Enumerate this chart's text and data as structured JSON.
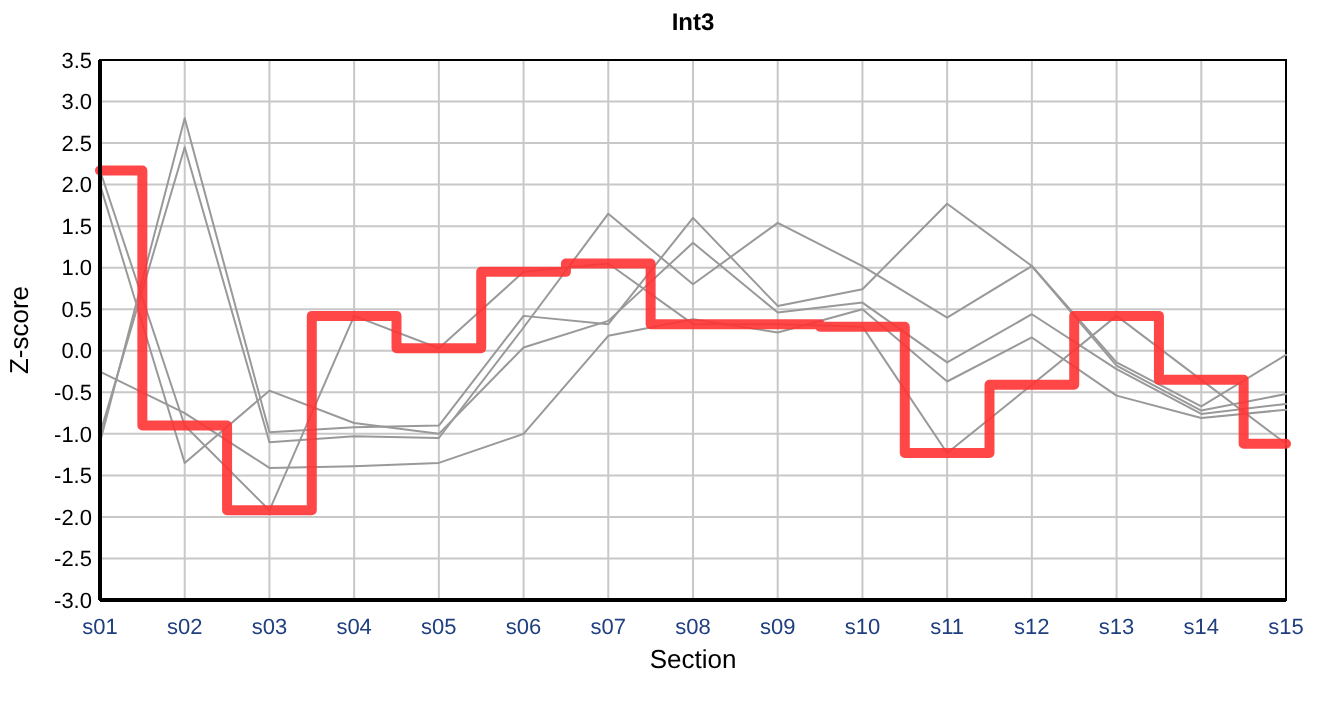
{
  "chart_data": {
    "type": "line",
    "title": "Int3",
    "xlabel": "Section",
    "ylabel": "Z-score",
    "categories": [
      "s01",
      "s02",
      "s03",
      "s04",
      "s05",
      "s06",
      "s07",
      "s08",
      "s09",
      "s10",
      "s11",
      "s12",
      "s13",
      "s14",
      "s15"
    ],
    "series": [
      {
        "color": "#999999",
        "values": [
          -1.1,
          2.8,
          -0.98,
          -0.92,
          -0.9,
          0.42,
          0.32,
          1.6,
          0.54,
          0.74,
          1.77,
          1.02,
          -0.14,
          -0.67,
          -0.05
        ]
      },
      {
        "color": "#999999",
        "values": [
          -1.0,
          2.45,
          -1.1,
          -1.03,
          -1.05,
          0.28,
          1.65,
          0.8,
          1.54,
          1.02,
          0.4,
          1.02,
          -0.18,
          -0.72,
          -0.52
        ]
      },
      {
        "color": "#999999",
        "values": [
          2.0,
          -1.35,
          -0.48,
          -0.87,
          -1.0,
          0.04,
          0.36,
          1.3,
          0.46,
          0.58,
          -0.14,
          0.44,
          -0.22,
          -0.76,
          -0.64
        ]
      },
      {
        "color": "#999999",
        "values": [
          -0.25,
          -0.75,
          -1.41,
          -1.39,
          -1.35,
          -1.0,
          0.18,
          0.38,
          0.22,
          0.5,
          -0.37,
          0.16,
          -0.54,
          -0.81,
          -0.71
        ]
      },
      {
        "color": "#999999",
        "values": [
          2.17,
          -0.9,
          -1.92,
          0.42,
          0.03,
          0.95,
          1.05,
          0.32,
          0.32,
          0.29,
          -1.23,
          -0.41,
          0.42,
          -0.35,
          -1.12
        ]
      },
      {
        "type": "step",
        "color": "#ff3333",
        "values": [
          2.17,
          -0.9,
          -1.92,
          0.42,
          0.03,
          0.95,
          1.05,
          0.32,
          0.32,
          0.29,
          -1.23,
          -0.41,
          0.42,
          -0.35,
          -1.12
        ]
      }
    ],
    "ylim": [
      -3.0,
      3.5
    ],
    "yticks": [
      {
        "value": -3,
        "label": "-3.0"
      },
      {
        "value": -2.5,
        "label": "-2.5"
      },
      {
        "value": -2,
        "label": "-2.0"
      },
      {
        "value": -1.5,
        "label": "-1.5"
      },
      {
        "value": -1,
        "label": "-1.0"
      },
      {
        "value": -0.5,
        "label": "-0.5"
      },
      {
        "value": 0,
        "label": "0.0"
      },
      {
        "value": 0.5,
        "label": "0.5"
      },
      {
        "value": 1,
        "label": "1.0"
      },
      {
        "value": 1.5,
        "label": "1.5"
      },
      {
        "value": 2,
        "label": "2.0"
      },
      {
        "value": 2.5,
        "label": "2.5"
      },
      {
        "value": 3,
        "label": "3.0"
      },
      {
        "value": 3.5,
        "label": "3.5"
      }
    ],
    "grid": true,
    "marker": "none",
    "line_style": "solid"
  }
}
